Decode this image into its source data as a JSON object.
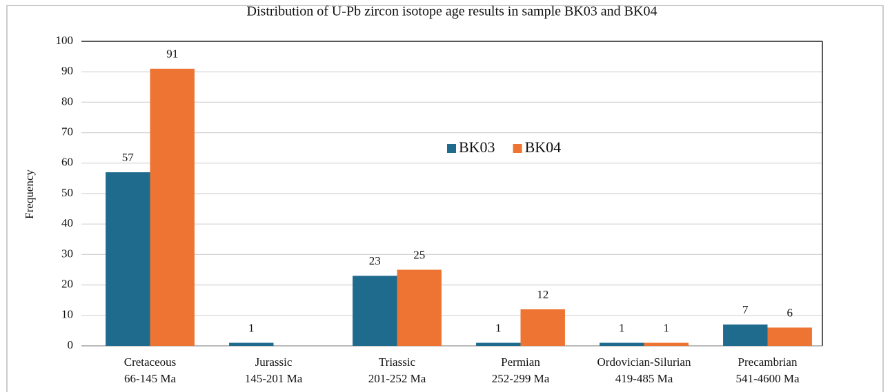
{
  "chart_data": {
    "type": "bar",
    "title": "Distribution of U-Pb zircon isotope age results in sample BK03  and BK04",
    "ylabel": "Frequency",
    "categories": [
      [
        "Cretaceous",
        "66-145 Ma"
      ],
      [
        "Jurassic",
        "145-201  Ma"
      ],
      [
        "Triassic",
        "201-252  Ma"
      ],
      [
        "Permian",
        "252-299  Ma"
      ],
      [
        "Ordovician-Silurian",
        "419-485  Ma"
      ],
      [
        "Precambrian",
        "541-4600  Ma"
      ]
    ],
    "series": [
      {
        "name": "BK03",
        "color": "#1f6b8e",
        "values": [
          57,
          1,
          23,
          1,
          1,
          7
        ]
      },
      {
        "name": "BK04",
        "color": "#ed7432",
        "values": [
          91,
          null,
          25,
          12,
          1,
          6
        ]
      }
    ],
    "ylim": [
      0,
      100
    ],
    "yticks": [
      0,
      10,
      20,
      30,
      40,
      50,
      60,
      70,
      80,
      90,
      100
    ],
    "grid": true,
    "legend": "center"
  }
}
